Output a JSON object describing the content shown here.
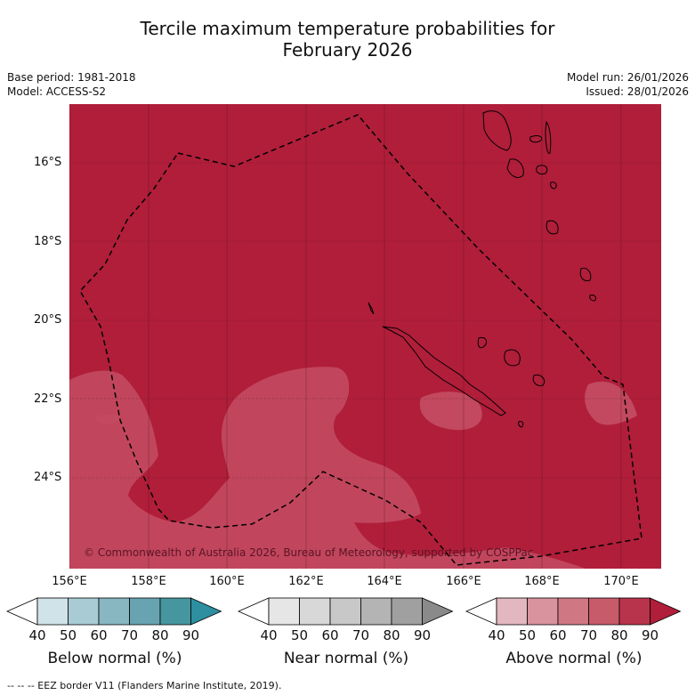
{
  "title": {
    "line1": "Tercile maximum temperature probabilities for",
    "line2": "February 2026"
  },
  "meta": {
    "base_period": "Base period: 1981-2018",
    "model": "Model: ACCESS-S2",
    "model_run": "Model run: 26/01/2026",
    "issued": "Issued: 28/01/2026"
  },
  "map": {
    "copyright": "© Commonwealth of Australia 2026, Bureau of Meteorology, supported by COSPPac",
    "background_color": "#b01e3a",
    "lighter_color": "#c2495f",
    "lat_labels": [
      "16°S",
      "18°S",
      "20°S",
      "22°S",
      "24°S"
    ],
    "lon_labels": [
      "156°E",
      "158°E",
      "160°E",
      "162°E",
      "164°E",
      "166°E",
      "168°E",
      "170°E"
    ]
  },
  "colorbars": [
    {
      "label": "Below normal (%)",
      "ticks": [
        "40",
        "50",
        "60",
        "70",
        "80",
        "90"
      ],
      "colors": [
        "#cfe3e8",
        "#a9ccd4",
        "#88b7c2",
        "#68a3b1",
        "#45969f",
        "#2d8fa0"
      ]
    },
    {
      "label": "Near normal (%)",
      "ticks": [
        "40",
        "50",
        "60",
        "70",
        "80",
        "90"
      ],
      "colors": [
        "#e6e6e6",
        "#d8d8d8",
        "#c8c8c8",
        "#b4b4b4",
        "#a0a0a0",
        "#8a8a8a"
      ]
    },
    {
      "label": "Above normal (%)",
      "ticks": [
        "40",
        "50",
        "60",
        "70",
        "80",
        "90"
      ],
      "colors": [
        "#e3b7c0",
        "#d9939f",
        "#cf7884",
        "#c75b6a",
        "#b8344c",
        "#b01e3a"
      ]
    }
  ],
  "footer": "--  --  -- EEZ border V11 (Flanders Marine Institute, 2019)."
}
